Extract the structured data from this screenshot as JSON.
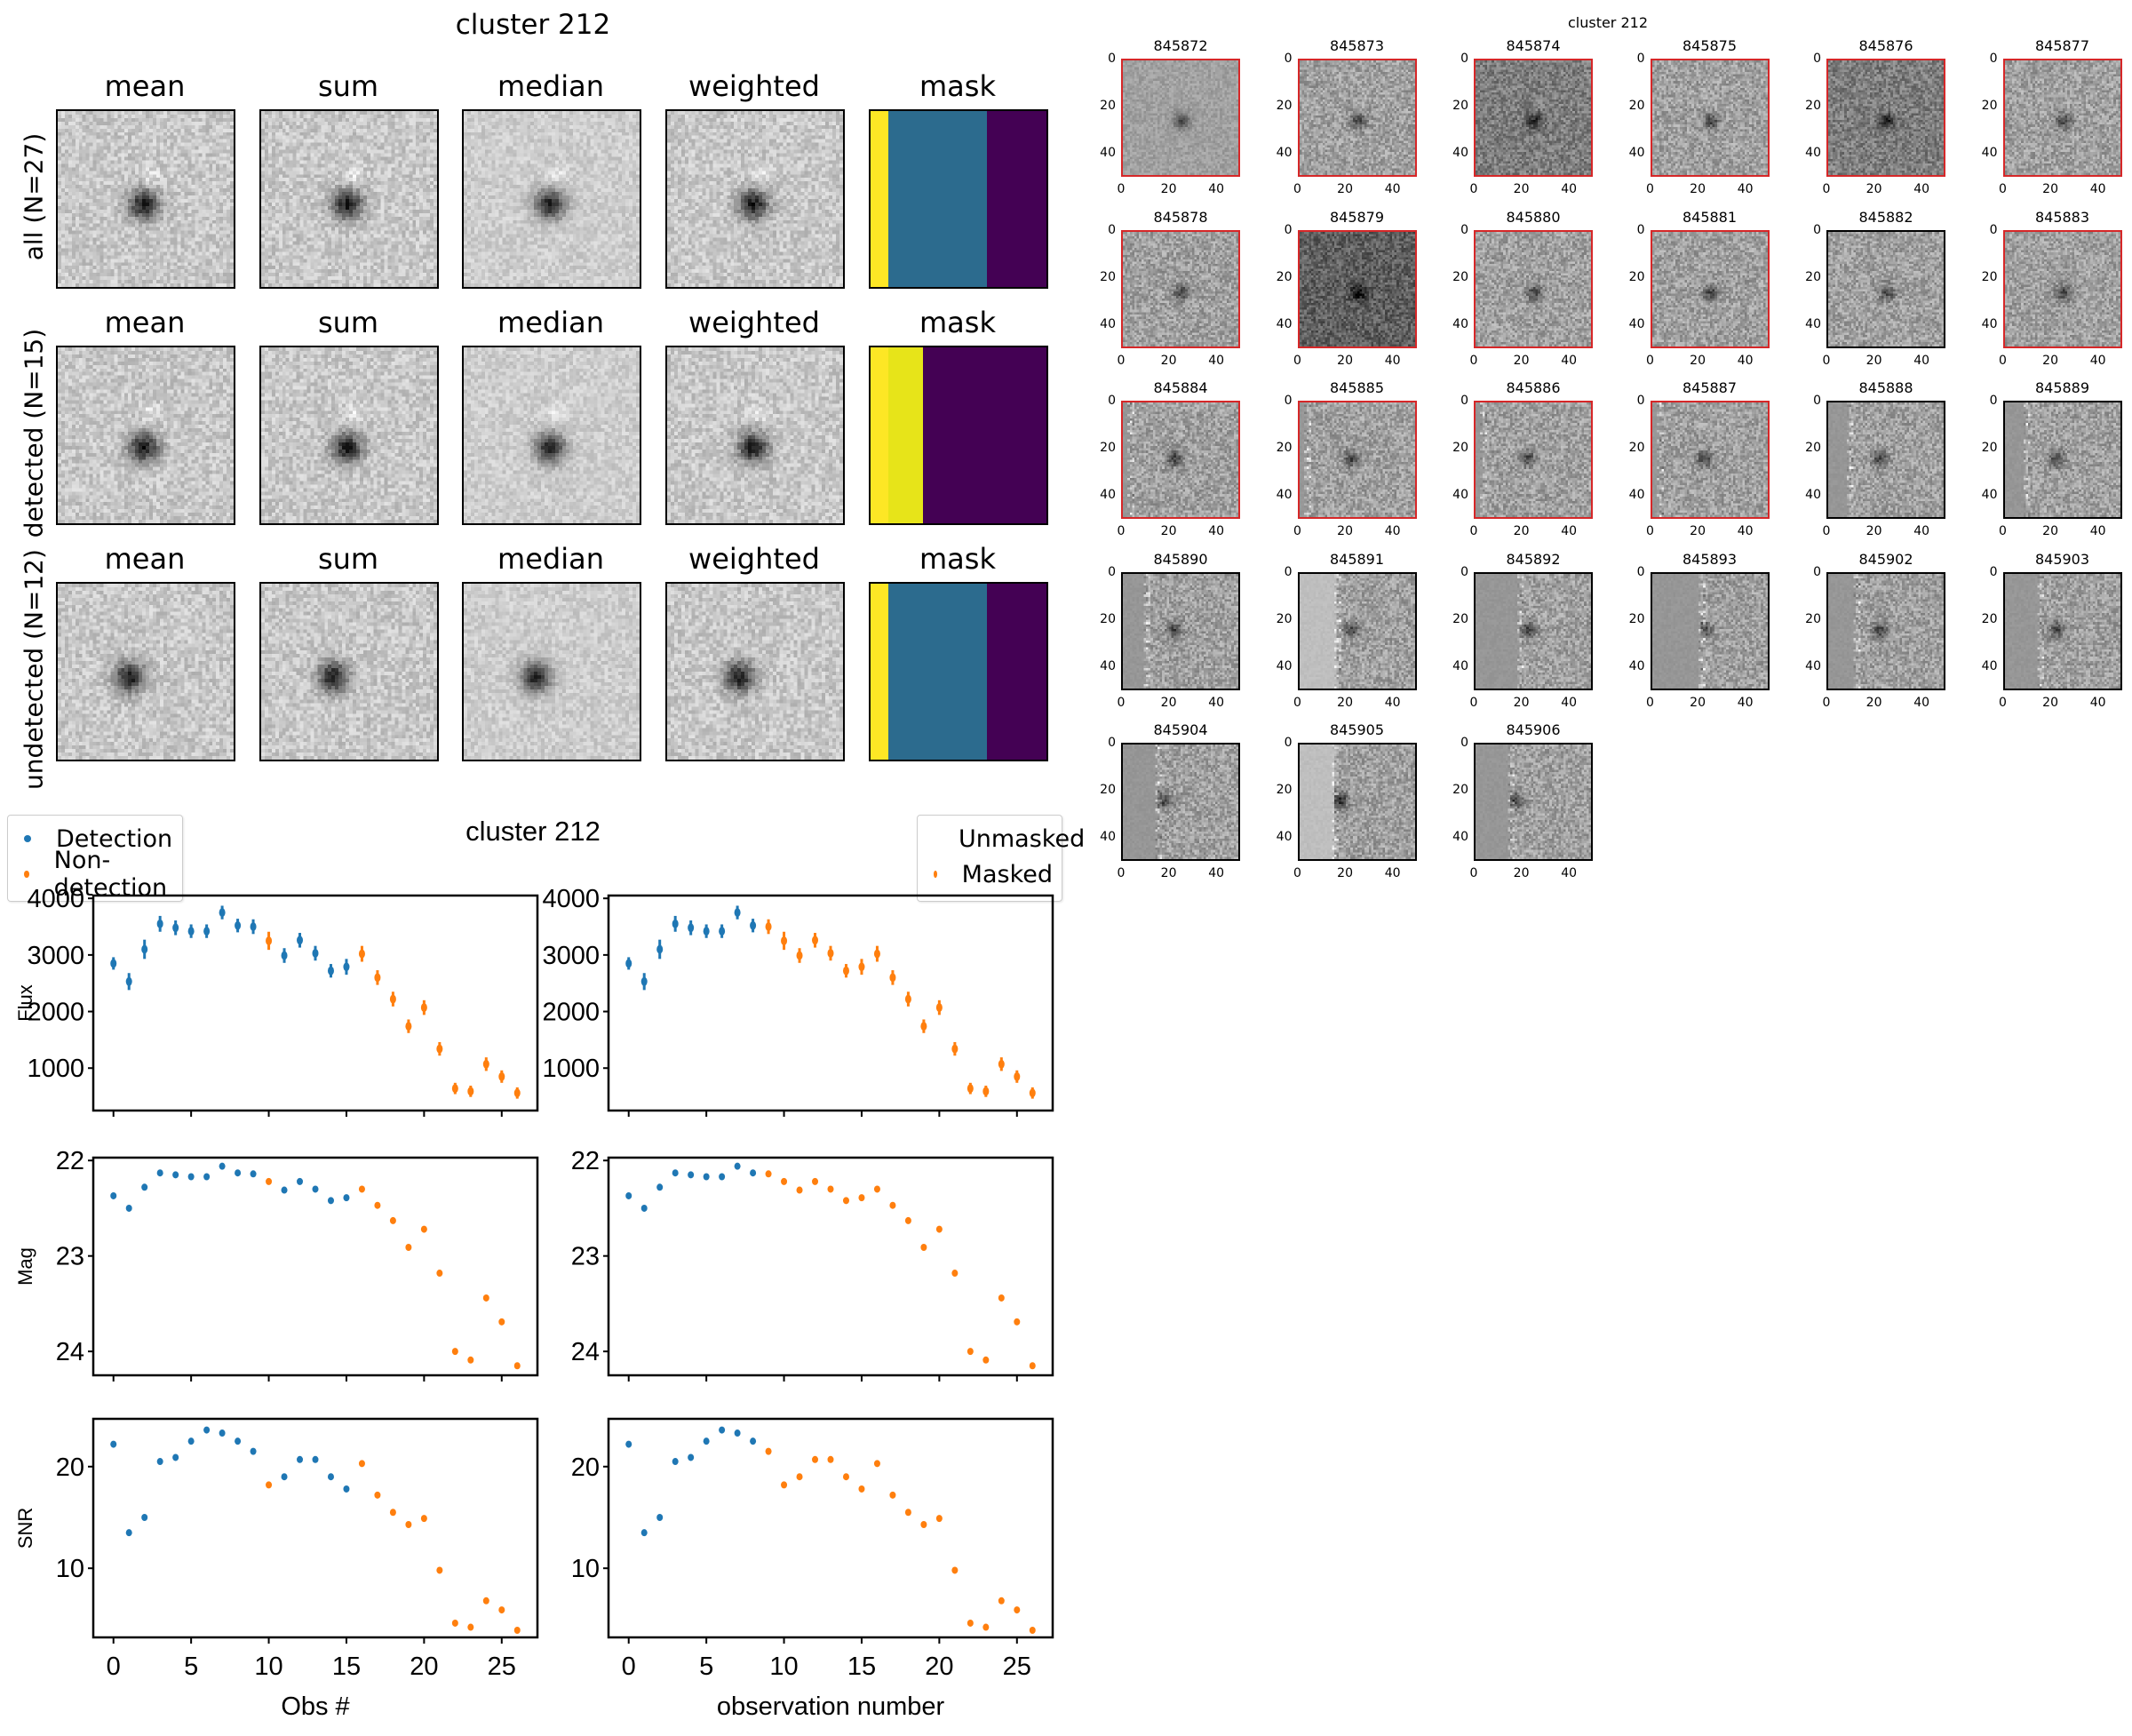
{
  "stacks_panel": {
    "title": "cluster 212",
    "column_titles": [
      "mean",
      "sum",
      "median",
      "weighted",
      "mask"
    ],
    "rows": [
      {
        "label": "all (N=27)",
        "mask_segments": [
          {
            "color": "#fde725",
            "fraction": 0.1
          },
          {
            "color": "#2c6b8e",
            "fraction": 0.56
          },
          {
            "color": "#440154",
            "fraction": 0.34
          }
        ]
      },
      {
        "label": "detected (N=15)",
        "mask_segments": [
          {
            "color": "#fde725",
            "fraction": 0.1
          },
          {
            "color": "#e7e419",
            "fraction": 0.2
          },
          {
            "color": "#440154",
            "fraction": 0.7
          }
        ]
      },
      {
        "label": "undetected (N=12)",
        "mask_segments": [
          {
            "color": "#fde725",
            "fraction": 0.1
          },
          {
            "color": "#2c6b8e",
            "fraction": 0.56
          },
          {
            "color": "#440154",
            "fraction": 0.34
          }
        ]
      }
    ]
  },
  "lightcurve_panel": {
    "title": "cluster 212",
    "legend_left": [
      {
        "label": "Detection",
        "color": "#1f77b4"
      },
      {
        "label": "Non-detection",
        "color": "#ff7f0e"
      }
    ],
    "legend_right": [
      {
        "label": "Unmasked",
        "color": "#1f77b4"
      },
      {
        "label": "Masked",
        "color": "#ff7f0e"
      }
    ],
    "xlabel_left": "Obs #",
    "xlabel_right": "observation number"
  },
  "chart_data": [
    {
      "type": "scatter",
      "title": "cluster 212",
      "panels": [
        "Flux",
        "Mag",
        "SNR"
      ],
      "x": [
        0,
        1,
        2,
        3,
        4,
        5,
        6,
        7,
        8,
        9,
        10,
        11,
        12,
        13,
        14,
        15,
        16,
        17,
        18,
        19,
        20,
        21,
        22,
        23,
        24,
        25,
        26
      ],
      "detected": [
        1,
        1,
        1,
        1,
        1,
        1,
        1,
        1,
        1,
        1,
        0,
        1,
        1,
        1,
        1,
        1,
        0,
        0,
        0,
        0,
        0,
        0,
        0,
        0,
        0,
        0,
        0
      ],
      "unmasked": [
        1,
        1,
        1,
        1,
        1,
        1,
        1,
        1,
        1,
        0,
        0,
        0,
        0,
        0,
        0,
        0,
        0,
        0,
        0,
        0,
        0,
        0,
        0,
        0,
        0,
        0,
        0
      ],
      "flux": [
        2850,
        2530,
        3100,
        3550,
        3480,
        3420,
        3420,
        3750,
        3520,
        3500,
        3250,
        2990,
        3260,
        3030,
        2720,
        2790,
        3020,
        2600,
        2220,
        1740,
        2070,
        1340,
        640,
        590,
        1070,
        850,
        560
      ],
      "flux_err": [
        110,
        150,
        170,
        140,
        130,
        120,
        120,
        120,
        120,
        130,
        160,
        130,
        130,
        130,
        120,
        140,
        140,
        130,
        130,
        120,
        130,
        120,
        100,
        100,
        120,
        110,
        100
      ],
      "mag": [
        22.37,
        22.5,
        22.28,
        22.13,
        22.15,
        22.17,
        22.17,
        22.06,
        22.13,
        22.14,
        22.22,
        22.31,
        22.22,
        22.3,
        22.42,
        22.39,
        22.3,
        22.47,
        22.63,
        22.91,
        22.72,
        23.18,
        24.0,
        24.09,
        23.44,
        23.69,
        24.15
      ],
      "snr": [
        22.2,
        13.5,
        15.0,
        20.5,
        20.9,
        22.5,
        23.6,
        23.3,
        22.5,
        21.5,
        18.2,
        19.0,
        20.7,
        20.7,
        19.0,
        17.8,
        20.3,
        17.2,
        15.5,
        14.3,
        14.9,
        9.8,
        4.6,
        4.2,
        6.8,
        5.9,
        3.9
      ],
      "flux_ylim": [
        250,
        4050
      ],
      "flux_yticks": [
        1000,
        2000,
        3000,
        4000
      ],
      "mag_ylim": [
        24.25,
        21.97
      ],
      "mag_yticks": [
        22,
        23,
        24
      ],
      "snr_ylim": [
        3.2,
        24.7
      ],
      "snr_yticks": [
        10,
        20
      ],
      "xlim": [
        -1.3,
        27.3
      ],
      "xticks": [
        0,
        5,
        10,
        15,
        20,
        25
      ],
      "ylabels": [
        "Flux",
        "Mag",
        "SNR"
      ],
      "xlabels": [
        "Obs #",
        "observation number"
      ],
      "legends": [
        [
          "Detection",
          "Non-detection"
        ],
        [
          "Unmasked",
          "Masked"
        ]
      ],
      "colors": {
        "blue": "#1f77b4",
        "orange": "#ff7f0e"
      }
    }
  ],
  "thumbnails_panel": {
    "title": "cluster 212",
    "axis_ticks": [
      "0",
      "20",
      "40"
    ],
    "frames": [
      {
        "id": "845872",
        "masked": true
      },
      {
        "id": "845873",
        "masked": true
      },
      {
        "id": "845874",
        "masked": true
      },
      {
        "id": "845875",
        "masked": true
      },
      {
        "id": "845876",
        "masked": true
      },
      {
        "id": "845877",
        "masked": true
      },
      {
        "id": "845878",
        "masked": true
      },
      {
        "id": "845879",
        "masked": true
      },
      {
        "id": "845880",
        "masked": true
      },
      {
        "id": "845881",
        "masked": true
      },
      {
        "id": "845882",
        "masked": false
      },
      {
        "id": "845883",
        "masked": true
      },
      {
        "id": "845884",
        "masked": true
      },
      {
        "id": "845885",
        "masked": true
      },
      {
        "id": "845886",
        "masked": true
      },
      {
        "id": "845887",
        "masked": true
      },
      {
        "id": "845888",
        "masked": false
      },
      {
        "id": "845889",
        "masked": false
      },
      {
        "id": "845890",
        "masked": false
      },
      {
        "id": "845891",
        "masked": false
      },
      {
        "id": "845892",
        "masked": false
      },
      {
        "id": "845893",
        "masked": false
      },
      {
        "id": "845902",
        "masked": false
      },
      {
        "id": "845903",
        "masked": false
      },
      {
        "id": "845904",
        "masked": false
      },
      {
        "id": "845905",
        "masked": false
      },
      {
        "id": "845906",
        "masked": false
      }
    ],
    "masked_border_color": "#d62728"
  }
}
